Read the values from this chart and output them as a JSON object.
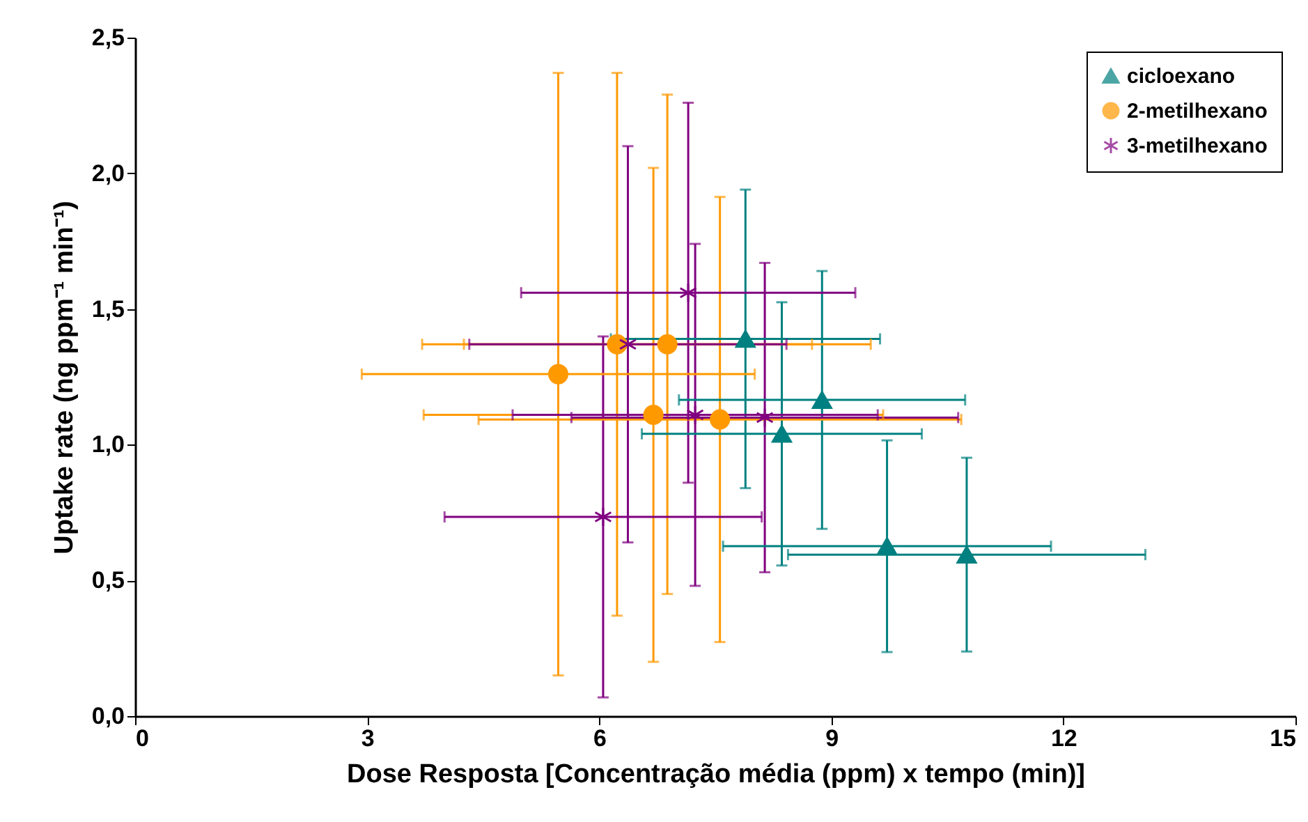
{
  "chart_data": {
    "type": "scatter",
    "xlabel": "Dose Resposta [Concentração média (ppm) x tempo (min)]",
    "ylabel": "Uptake rate (ng ppm⁻¹ min⁻¹)",
    "xlim": [
      0,
      15
    ],
    "xticks": [
      0,
      3,
      6,
      9,
      12,
      15
    ],
    "ylim": [
      0,
      2.5
    ],
    "yticks": [
      {
        "value": 0,
        "label": "0,0"
      },
      {
        "value": 0.5,
        "label": "0,5"
      },
      {
        "value": 1,
        "label": "1,0"
      },
      {
        "value": 1.5,
        "label": "1,5"
      },
      {
        "value": 2,
        "label": "2,0"
      },
      {
        "value": 2.5,
        "label": "2,5"
      }
    ],
    "grid": false,
    "legend": "top right",
    "series": [
      {
        "name": "cicloexano",
        "color": "#008080",
        "marker": "triangle",
        "x": [
          7.89,
          8.88,
          8.36,
          9.72,
          10.75
        ],
        "values": [
          1.39,
          1.165,
          1.04,
          0.626,
          0.595
        ],
        "errors": [
          0.55,
          0.475,
          0.485,
          0.39,
          0.357
        ],
        "xerrors": [
          1.74,
          1.85,
          1.81,
          2.12,
          2.31
        ]
      },
      {
        "name": "2-metilhexano",
        "color": "#ff9900",
        "marker": "circle",
        "x": [
          6.23,
          6.88,
          5.47,
          6.7,
          7.56
        ],
        "values": [
          1.37,
          1.37,
          1.26,
          1.11,
          1.093
        ],
        "errors": [
          1.0,
          0.92,
          1.11,
          0.91,
          0.82
        ],
        "xerrors": [
          2.52,
          2.63,
          2.54,
          2.97,
          3.12
        ]
      },
      {
        "name": "3-metilhexano",
        "color": "#800080",
        "marker": "cross",
        "x": [
          7.15,
          6.37,
          7.24,
          8.14,
          6.05
        ],
        "values": [
          1.56,
          1.37,
          1.11,
          1.1,
          0.734
        ],
        "errors": [
          0.7,
          0.73,
          0.63,
          0.57,
          0.665
        ],
        "xerrors": [
          2.16,
          2.05,
          2.36,
          2.5,
          2.05
        ]
      }
    ]
  }
}
